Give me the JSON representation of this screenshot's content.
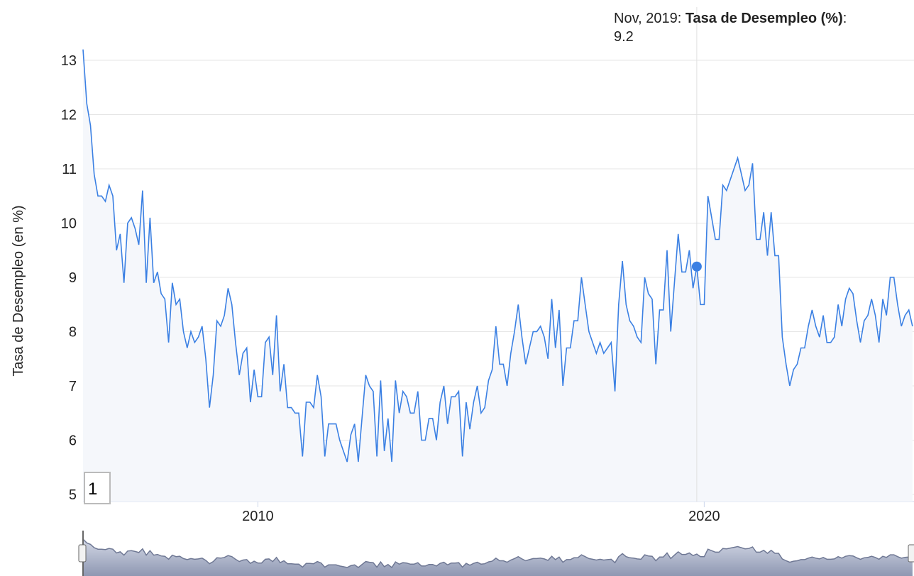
{
  "chart_data": {
    "type": "line",
    "y_label": "Tasa de Desempleo (en %)",
    "x": [
      "2006-02",
      "2006-03",
      "2006-04",
      "2006-05",
      "2006-06",
      "2006-07",
      "2006-08",
      "2006-09",
      "2006-10",
      "2006-11",
      "2006-12",
      "2007-01",
      "2007-02",
      "2007-03",
      "2007-04",
      "2007-05",
      "2007-06",
      "2007-07",
      "2007-08",
      "2007-09",
      "2007-10",
      "2007-11",
      "2007-12",
      "2008-01",
      "2008-02",
      "2008-03",
      "2008-04",
      "2008-05",
      "2008-06",
      "2008-07",
      "2008-08",
      "2008-09",
      "2008-10",
      "2008-11",
      "2008-12",
      "2009-01",
      "2009-02",
      "2009-03",
      "2009-04",
      "2009-05",
      "2009-06",
      "2009-07",
      "2009-08",
      "2009-09",
      "2009-10",
      "2009-11",
      "2009-12",
      "2010-01",
      "2010-02",
      "2010-03",
      "2010-04",
      "2010-05",
      "2010-06",
      "2010-07",
      "2010-08",
      "2010-09",
      "2010-10",
      "2010-11",
      "2010-12",
      "2011-01",
      "2011-02",
      "2011-03",
      "2011-04",
      "2011-05",
      "2011-06",
      "2011-07",
      "2011-08",
      "2011-09",
      "2011-10",
      "2011-11",
      "2011-12",
      "2012-01",
      "2012-02",
      "2012-03",
      "2012-04",
      "2012-05",
      "2012-06",
      "2012-07",
      "2012-08",
      "2012-09",
      "2012-10",
      "2012-11",
      "2012-12",
      "2013-01",
      "2013-02",
      "2013-03",
      "2013-04",
      "2013-05",
      "2013-06",
      "2013-07",
      "2013-08",
      "2013-09",
      "2013-10",
      "2013-11",
      "2013-12",
      "2014-01",
      "2014-02",
      "2014-03",
      "2014-04",
      "2014-05",
      "2014-06",
      "2014-07",
      "2014-08",
      "2014-09",
      "2014-10",
      "2014-11",
      "2014-12",
      "2015-01",
      "2015-02",
      "2015-03",
      "2015-04",
      "2015-05",
      "2015-06",
      "2015-07",
      "2015-08",
      "2015-09",
      "2015-10",
      "2015-11",
      "2015-12",
      "2016-01",
      "2016-02",
      "2016-03",
      "2016-04",
      "2016-05",
      "2016-06",
      "2016-07",
      "2016-08",
      "2016-09",
      "2016-10",
      "2016-11",
      "2016-12",
      "2017-01",
      "2017-02",
      "2017-03",
      "2017-04",
      "2017-05",
      "2017-06",
      "2017-07",
      "2017-08",
      "2017-09",
      "2017-10",
      "2017-11",
      "2017-12",
      "2018-01",
      "2018-02",
      "2018-03",
      "2018-04",
      "2018-05",
      "2018-06",
      "2018-07",
      "2018-08",
      "2018-09",
      "2018-10",
      "2018-11",
      "2018-12",
      "2019-01",
      "2019-02",
      "2019-03",
      "2019-04",
      "2019-05",
      "2019-06",
      "2019-07",
      "2019-08",
      "2019-09",
      "2019-10",
      "2019-11",
      "2019-12",
      "2020-01",
      "2020-02",
      "2020-03",
      "2020-04",
      "2020-05",
      "2020-06",
      "2020-07",
      "2020-08",
      "2020-09",
      "2020-10",
      "2020-11",
      "2020-12",
      "2021-01",
      "2021-02",
      "2021-03",
      "2021-04",
      "2021-05",
      "2021-06",
      "2021-07",
      "2021-08",
      "2021-09",
      "2021-10",
      "2021-11",
      "2021-12",
      "2022-01",
      "2022-02",
      "2022-03",
      "2022-04",
      "2022-05",
      "2022-06",
      "2022-07",
      "2022-08",
      "2022-09",
      "2022-10",
      "2022-11",
      "2022-12",
      "2023-01",
      "2023-02",
      "2023-03",
      "2023-04",
      "2023-05",
      "2023-06",
      "2023-07",
      "2023-08",
      "2023-09",
      "2023-10",
      "2023-11",
      "2023-12",
      "2024-01",
      "2024-02",
      "2024-03",
      "2024-04",
      "2024-05",
      "2024-06",
      "2024-07",
      "2024-08",
      "2024-09"
    ],
    "series": [
      {
        "name": "Tasa de Desempleo (%)",
        "color": "#3b80e3",
        "values": [
          13.2,
          12.2,
          11.8,
          10.9,
          10.5,
          10.5,
          10.4,
          10.7,
          10.5,
          9.5,
          9.8,
          8.9,
          10.0,
          10.1,
          9.9,
          9.6,
          10.6,
          8.9,
          10.1,
          8.9,
          9.1,
          8.7,
          8.6,
          7.8,
          8.9,
          8.5,
          8.6,
          8.0,
          7.7,
          8.0,
          7.8,
          7.9,
          8.1,
          7.5,
          6.6,
          7.2,
          8.2,
          8.1,
          8.3,
          8.8,
          8.5,
          7.8,
          7.2,
          7.6,
          7.7,
          6.7,
          7.3,
          6.8,
          6.8,
          7.8,
          7.9,
          7.2,
          8.3,
          6.9,
          7.4,
          6.6,
          6.6,
          6.5,
          6.5,
          5.7,
          6.7,
          6.7,
          6.6,
          7.2,
          6.8,
          5.7,
          6.3,
          6.3,
          6.3,
          6.0,
          5.8,
          5.6,
          6.1,
          6.3,
          5.6,
          6.4,
          7.2,
          7.0,
          6.9,
          5.7,
          7.1,
          5.8,
          6.4,
          5.6,
          7.1,
          6.5,
          6.9,
          6.8,
          6.5,
          6.5,
          6.9,
          6.0,
          6.0,
          6.4,
          6.4,
          6.0,
          6.7,
          7.0,
          6.3,
          6.8,
          6.8,
          6.9,
          5.7,
          6.7,
          6.2,
          6.7,
          7.0,
          6.5,
          6.6,
          7.1,
          7.3,
          8.1,
          7.4,
          7.4,
          7.0,
          7.6,
          8.0,
          8.5,
          7.9,
          7.4,
          7.7,
          8.0,
          8.0,
          8.1,
          7.9,
          7.5,
          8.6,
          7.7,
          8.4,
          7.0,
          7.7,
          7.7,
          8.2,
          8.2,
          9.0,
          8.5,
          8.0,
          7.8,
          7.6,
          7.8,
          7.6,
          7.7,
          7.8,
          6.9,
          8.5,
          9.3,
          8.5,
          8.2,
          8.1,
          7.9,
          7.8,
          9.0,
          8.7,
          8.6,
          7.4,
          8.4,
          8.4,
          9.5,
          8.0,
          8.9,
          9.8,
          9.1,
          9.1,
          9.5,
          8.8,
          9.2,
          8.5,
          8.5,
          10.5,
          10.1,
          9.7,
          9.7,
          10.7,
          10.6,
          10.8,
          11.0,
          11.2,
          10.9,
          10.6,
          10.7,
          11.1,
          9.7,
          9.7,
          10.2,
          9.4,
          10.2,
          9.4,
          9.4,
          7.9,
          7.4,
          7.0,
          7.3,
          7.4,
          7.7,
          7.7,
          8.1,
          8.4,
          8.1,
          7.9,
          8.3,
          7.8,
          7.8,
          7.9,
          8.5,
          8.1,
          8.6,
          8.8,
          8.7,
          8.2,
          7.8,
          8.2,
          8.3,
          8.6,
          8.3,
          7.8,
          8.6,
          8.3,
          9.0,
          9.0,
          8.5,
          8.1,
          8.3,
          8.4,
          8.1
        ]
      }
    ],
    "xlim": [
      2006.083,
      2024.7
    ],
    "xticks": [
      2010,
      2020
    ],
    "ylim": [
      4.87,
      13.98
    ],
    "yticks": [
      5,
      6,
      7,
      8,
      9,
      10,
      11,
      12,
      13
    ],
    "grid": true,
    "tooltip": {
      "date": "Nov, 2019",
      "index": 165
    },
    "annotations": [
      "1"
    ]
  }
}
